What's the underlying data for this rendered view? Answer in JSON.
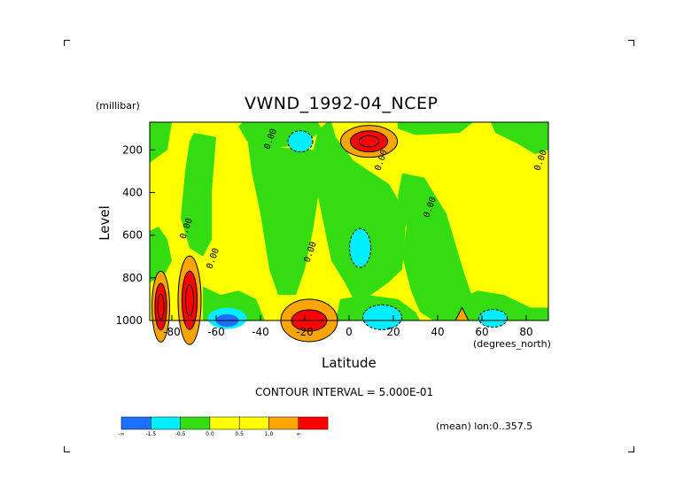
{
  "chart_data": {
    "type": "heatmap",
    "title": "VWND_1992-04_NCEP",
    "ylabel": "Level",
    "yunit": "(millibar)",
    "xlabel": "Latitude",
    "xunit": "(degrees_north)",
    "xlim": [
      -90,
      90
    ],
    "ylim": [
      1000,
      70
    ],
    "y_reversed": true,
    "x_ticks": [
      "-80",
      "-60",
      "-40",
      "-20",
      "0",
      "20",
      "40",
      "60",
      "80"
    ],
    "x_tick_values": [
      -80,
      -60,
      -40,
      -20,
      0,
      20,
      40,
      60,
      80
    ],
    "y_ticks": [
      "200",
      "400",
      "600",
      "800",
      "1000"
    ],
    "y_tick_values": [
      200,
      400,
      600,
      800,
      1000
    ],
    "contour_interval": "CONTOUR INTERVAL = 5.000E-01",
    "contour_labels": [
      "0.00"
    ],
    "annotation": "(mean) lon:0..357.5",
    "colorbar": {
      "levels": [
        "-∞",
        "-1.5",
        "-0.5",
        "0.0",
        "0.5",
        "1.0",
        "∞"
      ],
      "colors": [
        "#1f6fff",
        "#00eeff",
        "#33dd11",
        "#ffff00",
        "#ffff00",
        "#ffa500",
        "#ff0000"
      ]
    },
    "features": [
      {
        "sign": "positive",
        "lat": -85,
        "level": 920,
        "max_band": ">1.0"
      },
      {
        "sign": "positive",
        "lat": -72,
        "level": 900,
        "max_band": ">1.0"
      },
      {
        "sign": "positive",
        "lat": -18,
        "level": 980,
        "max_band": ">1.0"
      },
      {
        "sign": "positive",
        "lat": 9,
        "level": 160,
        "max_band": ">1.0"
      },
      {
        "sign": "negative",
        "lat": -22,
        "level": 160,
        "max_band": "<-0.5"
      },
      {
        "sign": "negative",
        "lat": 5,
        "level": 660,
        "max_band": "<-0.5"
      },
      {
        "sign": "negative",
        "lat": -55,
        "level": 980,
        "max_band": "<-1.5"
      },
      {
        "sign": "negative",
        "lat": 15,
        "level": 980,
        "max_band": "<-0.5"
      },
      {
        "sign": "negative",
        "lat": 65,
        "level": 980,
        "max_band": "<-0.5"
      }
    ]
  }
}
